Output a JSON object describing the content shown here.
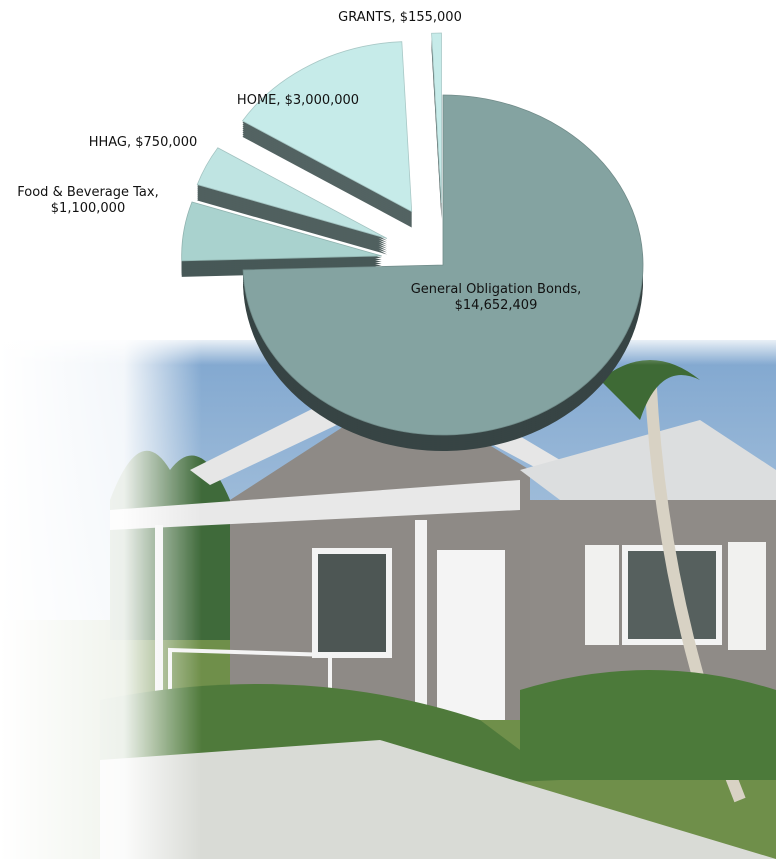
{
  "chart_data": {
    "type": "pie",
    "values": [
      14652409,
      1100000,
      750000,
      3000000,
      155000
    ],
    "value_labels": [
      "General Obligation Bonds,\n$14,652,409",
      "Food & Beverage Tax,\n$1,100,000",
      "HHAG, $750,000",
      "HOME, $3,000,000",
      "GRANTS, $155,000"
    ],
    "colors": [
      "#84a3a1",
      "#a9d2ce",
      "#bfe4e2",
      "#c6ebe9",
      "#c6ebe9"
    ]
  }
}
